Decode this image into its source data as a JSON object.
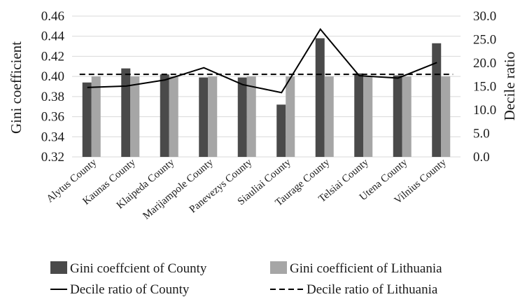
{
  "chart_data": {
    "type": "bar",
    "categories": [
      "Alytus County",
      "Kaunas County",
      "Klaipeda County",
      "Marijampole County",
      "Panevezys County",
      "Siauliai County",
      "Taurage County",
      "Telsiai County",
      "Utena County",
      "Vilnius County"
    ],
    "series": [
      {
        "name": "Gini coeffcient of County",
        "kind": "bar",
        "axis": "left",
        "color": "#4a4a4a",
        "values": [
          0.394,
          0.408,
          0.402,
          0.399,
          0.399,
          0.372,
          0.438,
          0.403,
          0.401,
          0.433
        ]
      },
      {
        "name": "Gini coefficient of Lithuania",
        "kind": "bar",
        "axis": "left",
        "color": "#a6a6a6",
        "values": [
          0.4,
          0.4,
          0.4,
          0.4,
          0.4,
          0.4,
          0.4,
          0.4,
          0.4,
          0.4
        ]
      },
      {
        "name": "Decile ratio of County",
        "kind": "line",
        "axis": "right",
        "color": "#000000",
        "dash": "solid",
        "values": [
          14.8,
          15.1,
          16.4,
          19.0,
          15.4,
          13.7,
          27.2,
          17.3,
          16.8,
          20.1
        ]
      },
      {
        "name": "Decile ratio of Lithuania",
        "kind": "line",
        "axis": "right",
        "color": "#000000",
        "dash": "dashed",
        "values": [
          17.6,
          17.6,
          17.6,
          17.6,
          17.6,
          17.6,
          17.6,
          17.6,
          17.6,
          17.6
        ]
      }
    ],
    "ylabel": "Gini coefficient",
    "y2label": "Decile ratio",
    "ylim": [
      0.32,
      0.46
    ],
    "y2lim": [
      0.0,
      30.0
    ],
    "yticks": [
      "0.32",
      "0.34",
      "0.36",
      "0.38",
      "0.40",
      "0.42",
      "0.44",
      "0.46"
    ],
    "y2ticks": [
      "0.0",
      "5.0",
      "10.0",
      "15.0",
      "20.0",
      "25.0",
      "30.0"
    ],
    "grid": true,
    "legend_position": "bottom"
  }
}
